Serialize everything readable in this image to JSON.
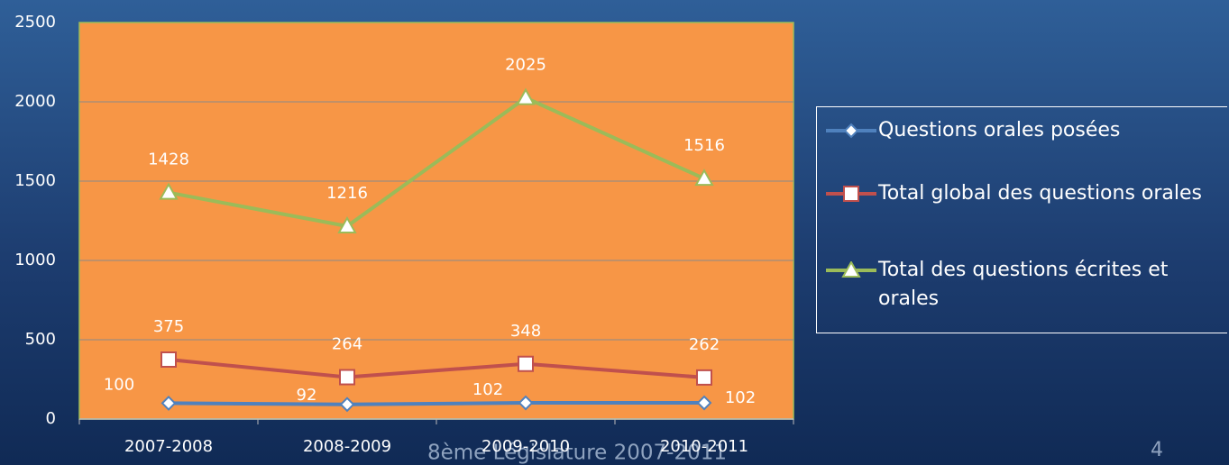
{
  "chart_data": {
    "type": "line",
    "categories": [
      "2007-2008",
      "2008-2009",
      "2009-2010",
      "2010-2011"
    ],
    "series": [
      {
        "name": "Questions orales posées",
        "color": "#4f81bd",
        "marker": "diamond",
        "values": [
          100,
          92,
          102,
          102
        ]
      },
      {
        "name": "Total global des questions orales",
        "color": "#c0504d",
        "marker": "square",
        "values": [
          375,
          264,
          348,
          262
        ]
      },
      {
        "name": "Total des questions écrites et orales",
        "color": "#9bbb59",
        "marker": "triangle",
        "values": [
          1428,
          1216,
          2025,
          1516
        ]
      }
    ],
    "ylim": [
      0,
      2500
    ],
    "yticks": [
      0,
      500,
      1000,
      1500,
      2000,
      2500
    ],
    "grid": true,
    "plot_background": "#f79646",
    "legend": "right"
  },
  "footer": "8ème Législature 2007-2011",
  "slide_number": "4"
}
